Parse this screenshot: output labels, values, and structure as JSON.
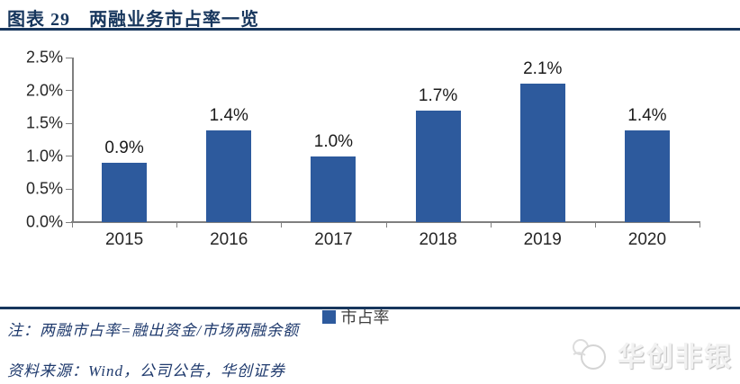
{
  "header": {
    "title": "图表 29　两融业务市占率一览"
  },
  "chart_data": {
    "type": "bar",
    "title": "两融业务市占率一览",
    "categories": [
      "2015",
      "2016",
      "2017",
      "2018",
      "2019",
      "2020"
    ],
    "series": [
      {
        "name": "市占率",
        "values": [
          0.9,
          1.4,
          1.0,
          1.7,
          2.1,
          1.4
        ],
        "labels": [
          "0.9%",
          "1.4%",
          "1.0%",
          "1.7%",
          "2.1%",
          "1.4%"
        ]
      }
    ],
    "ylim": [
      0,
      2.5
    ],
    "ytick_labels": [
      "0.0%",
      "0.5%",
      "1.0%",
      "1.5%",
      "2.0%",
      "2.5%"
    ],
    "grid": false,
    "legend_position": "bottom",
    "bar_color": "#2D5A9D"
  },
  "legend": {
    "label": "市占率"
  },
  "footer": {
    "note": "注：两融市占率=融出资金/市场两融余额",
    "source": "资料来源：Wind，公司公告，华创证券"
  },
  "watermark": {
    "text": "华创非银",
    "icon": "huachuang-bird-logo-icon"
  },
  "colors": {
    "title_navy": "#17365D",
    "bar_blue": "#2D5A9D",
    "axis_gray": "#7F7F7F",
    "label_dark": "#262626",
    "note_navy": "#1F3A6D",
    "watermark_gray": "#D9D9D9"
  }
}
